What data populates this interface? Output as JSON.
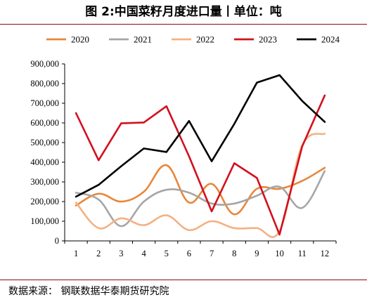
{
  "header": {
    "title": "图 2:中国菜籽月度进口量丨单位：吨"
  },
  "footer": {
    "source": "数据来源：  钢联数据华泰期货研究院"
  },
  "chart_data": {
    "type": "line",
    "title": "图 2:中国菜籽月度进口量丨单位：吨",
    "xlabel": "",
    "ylabel": "",
    "categories": [
      "1",
      "2",
      "3",
      "4",
      "5",
      "6",
      "7",
      "8",
      "9",
      "10",
      "11",
      "12"
    ],
    "ylim": [
      0,
      900000
    ],
    "yticks": [
      0,
      100000,
      200000,
      300000,
      400000,
      500000,
      600000,
      700000,
      800000,
      900000
    ],
    "ytick_labels": [
      "0",
      "100,000",
      "200,000",
      "300,000",
      "400,000",
      "500,000",
      "600,000",
      "700,000",
      "800,000",
      "900,000"
    ],
    "grid": false,
    "legend_position": "top",
    "series": [
      {
        "name": "2020",
        "color": "#e8873a",
        "values": [
          180000,
          240000,
          200000,
          250000,
          385000,
          195000,
          290000,
          135000,
          265000,
          265000,
          305000,
          372000
        ]
      },
      {
        "name": "2021",
        "color": "#a6a6a6",
        "values": [
          245000,
          210000,
          75000,
          200000,
          260000,
          245000,
          190000,
          190000,
          230000,
          275000,
          168000,
          355000
        ]
      },
      {
        "name": "2022",
        "color": "#f4b183",
        "values": [
          195000,
          65000,
          115000,
          80000,
          130000,
          55000,
          100000,
          65000,
          65000,
          50000,
          485000,
          545000
        ]
      },
      {
        "name": "2023",
        "color": "#d3101e",
        "values": [
          650000,
          410000,
          598000,
          602000,
          685000,
          430000,
          150000,
          395000,
          320000,
          32000,
          480000,
          740000
        ]
      },
      {
        "name": "2024",
        "color": "#000000",
        "values": [
          225000,
          285000,
          380000,
          470000,
          452000,
          610000,
          405000,
          595000,
          805000,
          843000,
          712000,
          605000
        ]
      }
    ]
  }
}
